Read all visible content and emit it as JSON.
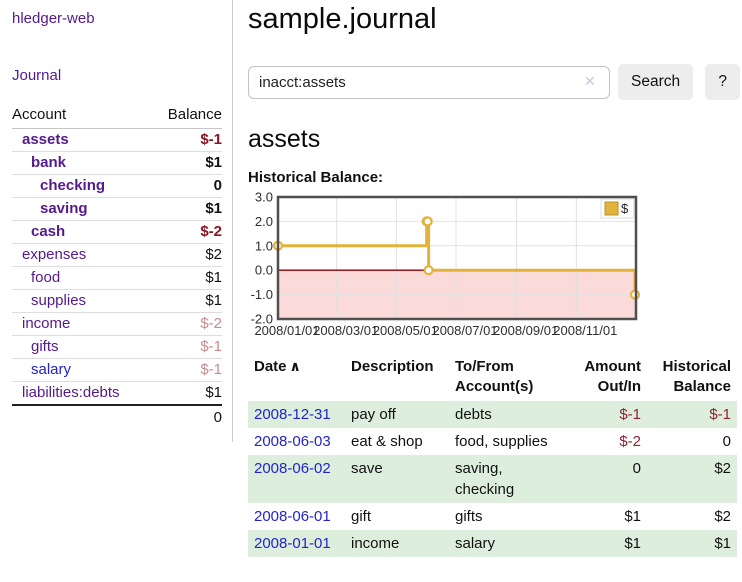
{
  "sidebar": {
    "brand": "hledger-web",
    "nav": {
      "journal": "Journal"
    },
    "accounts_table": {
      "col_account": "Account",
      "col_balance": "Balance",
      "rows": [
        {
          "account": "assets",
          "balance": "$-1"
        },
        {
          "account": "bank",
          "balance": "$1"
        },
        {
          "account": "checking",
          "balance": "0"
        },
        {
          "account": "saving",
          "balance": "$1"
        },
        {
          "account": "cash",
          "balance": "$-2"
        },
        {
          "account": "expenses",
          "balance": "$2"
        },
        {
          "account": "food",
          "balance": "$1"
        },
        {
          "account": "supplies",
          "balance": "$1"
        },
        {
          "account": "income",
          "balance": "$-2"
        },
        {
          "account": "gifts",
          "balance": "$-1"
        },
        {
          "account": "salary",
          "balance": "$-1"
        },
        {
          "account": "liabilities:debts",
          "balance": "$1"
        }
      ],
      "total": "0"
    }
  },
  "main": {
    "title": "sample.journal",
    "search": {
      "value": "inacct:assets",
      "clear_icon": "✕",
      "button": "Search",
      "help": "?"
    },
    "account_heading": "assets",
    "section_label": "Historical Balance:"
  },
  "chart_data": {
    "type": "line",
    "step": true,
    "title": "Historical Balance:",
    "xlabel": "",
    "ylabel": "",
    "ylim": [
      -2.0,
      3.0
    ],
    "x_start": "2008-01-01",
    "x_end": "2009-01-01",
    "x_ticks": [
      "2008/01/01",
      "2008/03/01",
      "2008/05/01",
      "2008/07/01",
      "2008/09/01",
      "2008/11/01"
    ],
    "y_ticks": [
      "3.0",
      "2.0",
      "1.0",
      "0.0",
      "-1.0",
      "-2.0"
    ],
    "grid": true,
    "legend_position": "top-right",
    "series": [
      {
        "name": "$",
        "color": "#e2b33c",
        "points": [
          [
            "2008-01-01",
            1
          ],
          [
            "2008-06-01",
            2
          ],
          [
            "2008-06-02",
            2
          ],
          [
            "2008-06-03",
            0
          ],
          [
            "2008-12-31",
            -1
          ]
        ]
      }
    ],
    "negative_region_color": "#fbdada",
    "zero_line_color": "#8b0000",
    "border_color": "#4f4f4f"
  },
  "register": {
    "headers": {
      "date": "Date",
      "sort_icon": "∧",
      "description": "Description",
      "accounts_l1": "To/From",
      "accounts_l2": "Account(s)",
      "amount_l1": "Amount",
      "amount_l2": "Out/In",
      "balance_l1": "Historical",
      "balance_l2": "Balance"
    },
    "rows": [
      {
        "date": "2008-12-31",
        "description": "pay off",
        "accounts": "debts",
        "amount": "$-1",
        "balance": "$-1"
      },
      {
        "date": "2008-06-03",
        "description": "eat & shop",
        "accounts": "food, supplies",
        "amount": "$-2",
        "balance": "0"
      },
      {
        "date": "2008-06-02",
        "description": "save",
        "accounts": "saving, checking",
        "amount": "0",
        "balance": "$2"
      },
      {
        "date": "2008-06-01",
        "description": "gift",
        "accounts": "gifts",
        "amount": "$1",
        "balance": "$2"
      },
      {
        "date": "2008-01-01",
        "description": "income",
        "accounts": "salary",
        "amount": "$1",
        "balance": "$1"
      }
    ]
  }
}
